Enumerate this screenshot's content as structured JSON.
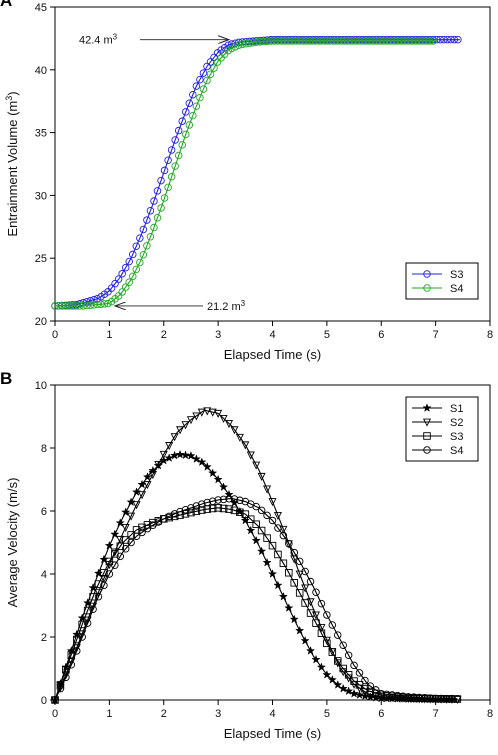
{
  "chart_data": [
    {
      "type": "line",
      "panel_label": "A",
      "title": "",
      "xlabel": "Elapsed Time (s)",
      "ylabel": "Entrainment Volume (m",
      "ylabel_sup": "3",
      "ylabel_end": ")",
      "xlim": [
        0,
        8
      ],
      "ylim": [
        20,
        45
      ],
      "xticks": [
        0,
        1,
        2,
        3,
        4,
        5,
        6,
        7,
        8
      ],
      "yticks": [
        20,
        25,
        30,
        35,
        40,
        45
      ],
      "grid": false,
      "legend_position": "bottom-right",
      "annotations": [
        {
          "text": "42.4 m",
          "sup": "3",
          "x": 3.2,
          "y": 42.4
        },
        {
          "text": "21.2 m",
          "sup": "3",
          "x": 1.1,
          "y": 21.2
        }
      ],
      "series": [
        {
          "name": "S3",
          "color": "#2222dd",
          "marker": "circle",
          "x": [
            0,
            0.4,
            0.8,
            1.0,
            1.2,
            1.4,
            1.6,
            1.8,
            2.0,
            2.2,
            2.4,
            2.6,
            2.8,
            3.0,
            3.2,
            3.4,
            3.7,
            4.0,
            5.0,
            6.0,
            7.0,
            7.45
          ],
          "values": [
            21.2,
            21.3,
            21.8,
            22.4,
            23.5,
            25.0,
            27.0,
            29.3,
            31.8,
            34.3,
            36.6,
            38.7,
            40.3,
            41.4,
            42.0,
            42.2,
            42.3,
            42.4,
            42.4,
            42.4,
            42.4,
            42.4
          ]
        },
        {
          "name": "S4",
          "color": "#22aa22",
          "marker": "circle",
          "x": [
            0,
            0.5,
            1.0,
            1.2,
            1.4,
            1.6,
            1.8,
            2.0,
            2.2,
            2.4,
            2.6,
            2.8,
            3.0,
            3.2,
            3.4,
            3.7,
            4.0,
            5.0,
            6.0,
            7.0
          ],
          "values": [
            21.2,
            21.2,
            21.4,
            22.1,
            23.3,
            25.0,
            27.2,
            29.6,
            32.2,
            34.8,
            37.1,
            39.2,
            40.7,
            41.6,
            42.0,
            42.2,
            42.3,
            42.3,
            42.3,
            42.3
          ]
        }
      ]
    },
    {
      "type": "line",
      "panel_label": "B",
      "title": "",
      "xlabel": "Elapsed Time (s)",
      "ylabel": "Average Velocity (m/s)",
      "xlim": [
        0,
        8
      ],
      "ylim": [
        0,
        10
      ],
      "xticks": [
        0,
        1,
        2,
        3,
        4,
        5,
        6,
        7,
        8
      ],
      "yticks": [
        0,
        2,
        4,
        6,
        8,
        10
      ],
      "grid": false,
      "legend_position": "top-right",
      "series": [
        {
          "name": "S1",
          "color": "#000000",
          "marker": "star",
          "x": [
            0,
            0.25,
            0.5,
            0.75,
            1.0,
            1.25,
            1.5,
            1.75,
            2.0,
            2.25,
            2.5,
            2.75,
            3.0,
            3.25,
            3.5,
            3.75,
            4.0,
            4.25,
            4.5,
            4.75,
            5.0,
            5.25,
            5.5,
            5.75,
            6.0,
            6.5,
            7.0,
            7.3
          ],
          "values": [
            0,
            1.3,
            2.6,
            3.8,
            4.9,
            5.8,
            6.6,
            7.2,
            7.6,
            7.8,
            7.75,
            7.5,
            7.0,
            6.4,
            5.7,
            4.9,
            4.0,
            3.1,
            2.2,
            1.4,
            0.8,
            0.4,
            0.2,
            0.1,
            0.05,
            0.03,
            0.02,
            0.02
          ]
        },
        {
          "name": "S2",
          "color": "#000000",
          "marker": "triangle-down",
          "x": [
            0,
            0.25,
            0.5,
            0.75,
            1.0,
            1.25,
            1.5,
            1.75,
            2.0,
            2.25,
            2.5,
            2.75,
            3.0,
            3.25,
            3.5,
            3.75,
            4.0,
            4.25,
            4.5,
            4.75,
            5.0,
            5.25,
            5.5,
            5.75,
            6.0,
            6.5,
            7.0,
            7.4
          ],
          "values": [
            0,
            1.0,
            2.1,
            3.2,
            4.3,
            5.3,
            6.2,
            7.0,
            7.8,
            8.5,
            8.9,
            9.2,
            9.1,
            8.7,
            8.1,
            7.3,
            6.3,
            5.2,
            4.0,
            2.9,
            1.9,
            1.0,
            0.5,
            0.2,
            0.1,
            0.05,
            0.03,
            0.02
          ]
        },
        {
          "name": "S3",
          "color": "#000000",
          "marker": "square",
          "x": [
            0,
            0.25,
            0.5,
            0.75,
            1.0,
            1.25,
            1.5,
            1.75,
            2.0,
            2.25,
            2.5,
            2.75,
            3.0,
            3.25,
            3.5,
            3.75,
            4.0,
            4.25,
            4.5,
            4.75,
            5.0,
            5.25,
            5.5,
            5.75,
            6.0,
            6.5,
            7.0,
            7.4
          ],
          "values": [
            0,
            1.2,
            2.4,
            3.5,
            4.4,
            5.0,
            5.4,
            5.6,
            5.75,
            5.85,
            5.95,
            6.05,
            6.1,
            6.05,
            5.9,
            5.5,
            4.9,
            4.2,
            3.4,
            2.6,
            1.8,
            1.1,
            0.6,
            0.3,
            0.15,
            0.07,
            0.04,
            0.03
          ]
        },
        {
          "name": "S4",
          "color": "#000000",
          "marker": "circle",
          "x": [
            0,
            0.25,
            0.5,
            0.75,
            1.0,
            1.25,
            1.5,
            1.75,
            2.0,
            2.25,
            2.5,
            2.75,
            3.0,
            3.25,
            3.5,
            3.75,
            4.0,
            4.25,
            4.5,
            4.75,
            5.0,
            5.25,
            5.5,
            5.75,
            6.0,
            6.5,
            7.0,
            7.4
          ],
          "values": [
            0,
            0.9,
            2.0,
            3.1,
            4.0,
            4.7,
            5.2,
            5.5,
            5.75,
            5.95,
            6.1,
            6.25,
            6.35,
            6.4,
            6.3,
            6.1,
            5.7,
            5.1,
            4.4,
            3.6,
            2.7,
            1.9,
            1.1,
            0.5,
            0.2,
            0.1,
            0.05,
            0.04
          ]
        }
      ]
    }
  ]
}
